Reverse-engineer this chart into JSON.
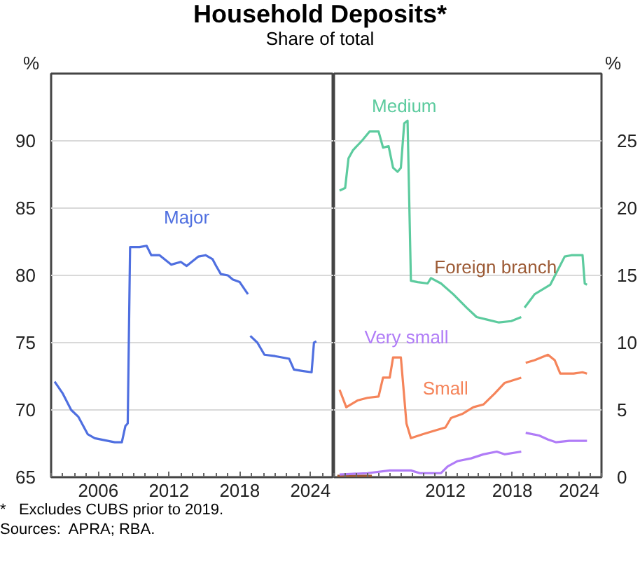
{
  "chart_data": [
    {
      "type": "line",
      "title": "Household Deposits*",
      "subtitle": "Share of total",
      "ylabel": "%",
      "xlim": [
        2002,
        2026
      ],
      "xticks": [
        2006,
        2012,
        2018,
        2024
      ],
      "ylim": [
        65,
        95
      ],
      "yticks": [
        65,
        70,
        75,
        80,
        85,
        90
      ],
      "grid": "y",
      "annotations": [
        "*   Excludes CUBS prior to 2019.",
        "Sources:  APRA; RBA."
      ],
      "series": [
        {
          "name": "Major",
          "color": "#4f6fe0",
          "x": [
            2002.3,
            2003.0,
            2003.7,
            2004.3,
            2005.1,
            2005.7,
            2006.8,
            2007.4,
            2008.0,
            2008.3,
            2008.5,
            2008.7,
            2009.5,
            2010.1,
            2010.5,
            2011.2,
            2012.2,
            2013.0,
            2013.5,
            2014.5,
            2015.1,
            2015.7,
            2016.0,
            2016.4,
            2017.0,
            2017.4,
            2018.0,
            2018.7,
            2018.8,
            2018.9,
            2019.5,
            2020.1,
            2021.0,
            2022.2,
            2022.6,
            2023.3,
            2024.1,
            2024.3,
            2024.5
          ],
          "values": [
            72.1,
            71.2,
            70.0,
            69.5,
            68.2,
            67.9,
            67.7,
            67.6,
            67.6,
            68.8,
            69.0,
            82.1,
            82.1,
            82.2,
            81.5,
            81.5,
            80.8,
            81.0,
            80.7,
            81.4,
            81.5,
            81.2,
            80.7,
            80.1,
            80.0,
            79.7,
            79.5,
            78.6,
            null,
            75.5,
            75.0,
            74.1,
            74.0,
            73.8,
            73.0,
            72.9,
            72.8,
            75.0,
            75.1
          ]
        }
      ]
    },
    {
      "type": "line",
      "y2label": "%",
      "xlim": [
        2002,
        2026
      ],
      "xticks": [
        2012,
        2018,
        2024
      ],
      "y2lim": [
        0,
        30
      ],
      "y2ticks": [
        0,
        5,
        10,
        15,
        20,
        25
      ],
      "grid": "y",
      "series": [
        {
          "name": "Medium",
          "color": "#5ccb9e",
          "axis": "y2",
          "x": [
            2002.5,
            2003.0,
            2003.3,
            2003.7,
            2004.5,
            2005.2,
            2006.0,
            2006.4,
            2006.9,
            2007.3,
            2007.7,
            2008.0,
            2008.3,
            2008.6,
            2008.9,
            2009.5,
            2010.4,
            2010.7,
            2011.6,
            2012.7,
            2013.9,
            2014.8,
            2015.8,
            2016.8,
            2017.9,
            2018.8,
            2018.95,
            2019.1,
            2020.0,
            2021.4,
            2021.9,
            2022.7,
            2023.3,
            2024.3,
            2024.5,
            2024.7
          ],
          "values": [
            21.3,
            21.5,
            23.7,
            24.3,
            25.0,
            25.7,
            25.7,
            24.5,
            24.6,
            23.0,
            22.7,
            23.0,
            26.3,
            26.5,
            14.6,
            14.5,
            14.4,
            14.8,
            14.4,
            13.6,
            12.6,
            11.9,
            11.7,
            11.5,
            11.6,
            11.9,
            null,
            12.6,
            13.6,
            14.3,
            15.1,
            16.4,
            16.5,
            16.5,
            14.4,
            14.3
          ]
        },
        {
          "name": "Foreign branch",
          "color": "#9c5a35",
          "axis": "y2",
          "x": [
            2002.3,
            2003.5,
            2005.4
          ],
          "values": [
            0.1,
            0.1,
            0.1
          ]
        },
        {
          "name": "Very small",
          "color": "#b07cf7",
          "axis": "y2",
          "x": [
            2002.5,
            2005.0,
            2007.0,
            2008.9,
            2009.7,
            2011.6,
            2012.2,
            2013.1,
            2014.3,
            2015.4,
            2016.6,
            2017.3,
            2018.8,
            2018.95,
            2019.2,
            2020.4,
            2021.2,
            2021.9,
            2023.1,
            2024.7
          ],
          "values": [
            0.2,
            0.3,
            0.5,
            0.5,
            0.3,
            0.3,
            0.8,
            1.2,
            1.4,
            1.7,
            1.9,
            1.7,
            1.9,
            null,
            3.3,
            3.1,
            2.8,
            2.6,
            2.7,
            2.7
          ]
        },
        {
          "name": "Small",
          "color": "#f5845a",
          "axis": "y2",
          "x": [
            2002.5,
            2003.1,
            2004.1,
            2005.0,
            2006.0,
            2006.4,
            2007.0,
            2007.3,
            2008.0,
            2008.5,
            2008.9,
            2010.0,
            2011.2,
            2012.0,
            2012.5,
            2013.5,
            2014.5,
            2015.4,
            2016.4,
            2017.3,
            2018.8,
            2019.0,
            2019.2,
            2020.0,
            2021.2,
            2021.8,
            2022.3,
            2023.5,
            2024.3,
            2024.7
          ],
          "values": [
            6.5,
            5.2,
            5.7,
            5.9,
            6.0,
            7.4,
            7.4,
            8.9,
            8.9,
            4.0,
            2.9,
            3.2,
            3.5,
            3.7,
            4.4,
            4.7,
            5.2,
            5.4,
            6.2,
            7.0,
            7.4,
            null,
            8.5,
            8.7,
            9.1,
            8.7,
            7.7,
            7.7,
            7.8,
            7.7
          ]
        }
      ]
    }
  ]
}
